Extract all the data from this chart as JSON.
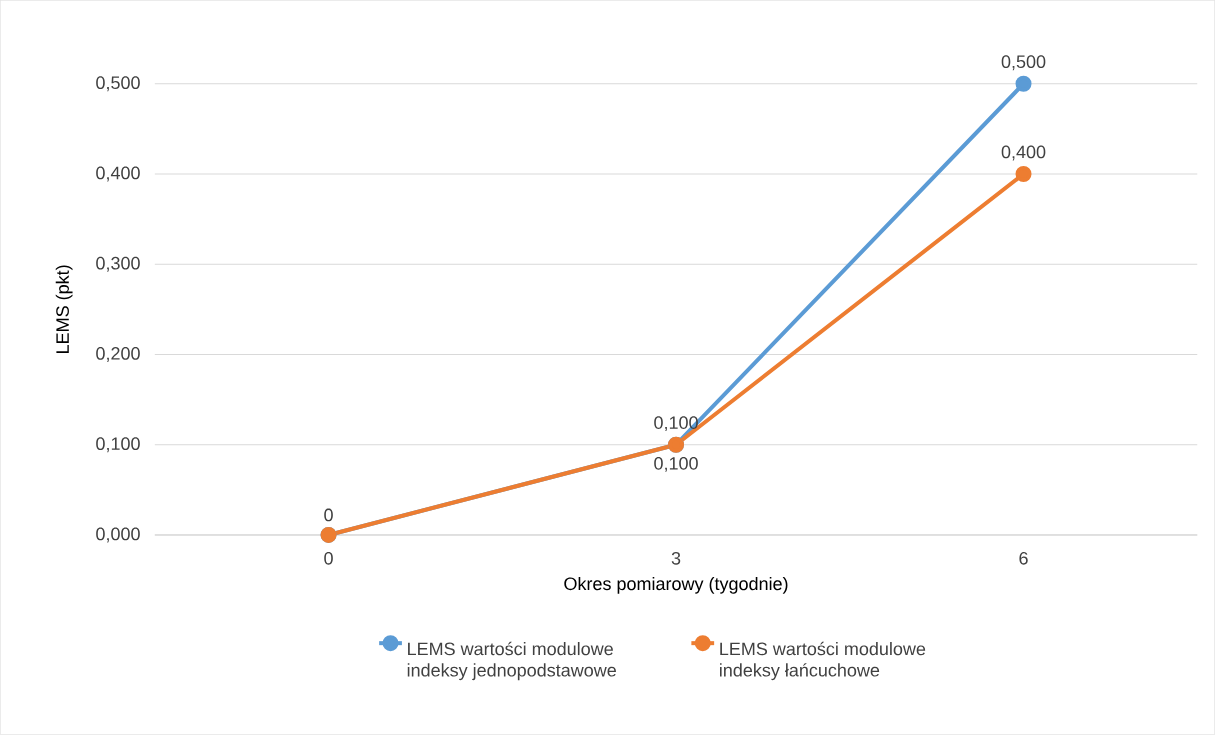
{
  "chart_data": {
    "type": "line",
    "xlabel": "Okres pomiarowy (tygodnie)",
    "ylabel": "LEMS (pkt)",
    "categories": [
      "0",
      "3",
      "6"
    ],
    "series": [
      {
        "name": "LEMS wartości modulowe indeksy jednopodstawowe",
        "color": "#5b9bd5",
        "values": [
          0,
          0.1,
          0.5
        ],
        "value_labels": [
          "0",
          "0,100",
          "0,500"
        ]
      },
      {
        "name": "LEMS wartości modulowe indeksy łańcuchowe",
        "color": "#ed7d31",
        "values": [
          0,
          0.1,
          0.4
        ],
        "value_labels": [
          null,
          "0,100",
          "0,400"
        ]
      }
    ],
    "ylim": [
      0,
      0.5
    ],
    "yticks": [
      {
        "value": 0,
        "label": "0,000"
      },
      {
        "value": 0.1,
        "label": "0,100"
      },
      {
        "value": 0.2,
        "label": "0,200"
      },
      {
        "value": 0.3,
        "label": "0,300"
      },
      {
        "value": 0.4,
        "label": "0,400"
      },
      {
        "value": 0.5,
        "label": "0,500"
      }
    ],
    "grid": "y",
    "legend": "bottom",
    "marker": "circle"
  }
}
